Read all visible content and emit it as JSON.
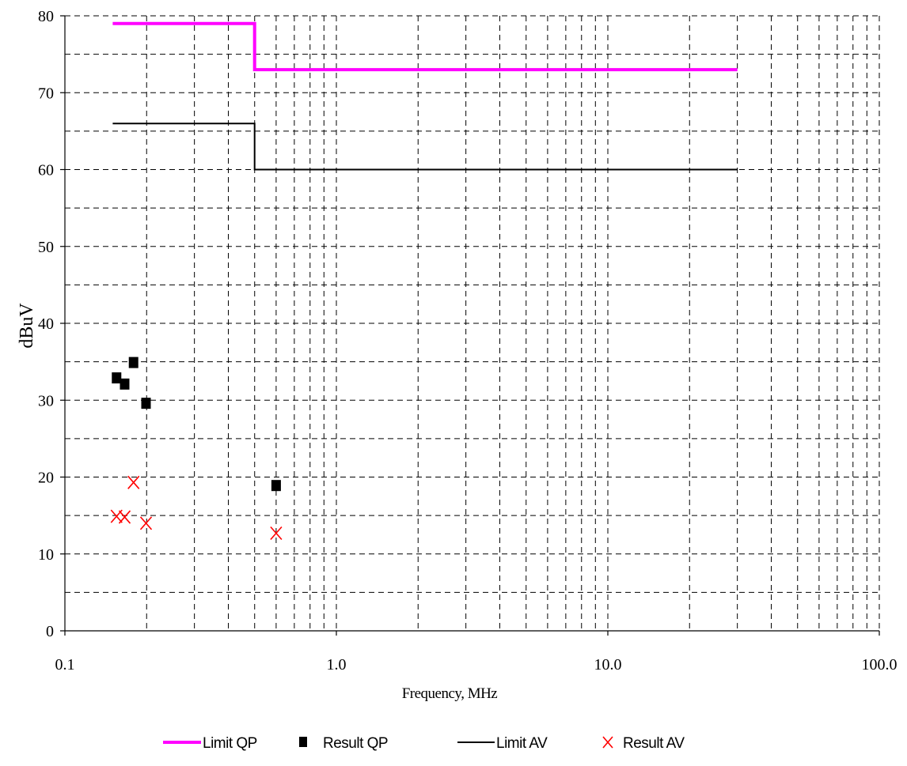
{
  "chart_data": {
    "type": "line",
    "xlabel": "Frequency, MHz",
    "ylabel": "dBuV",
    "x_scale": "log",
    "xlim": [
      0.1,
      100
    ],
    "ylim": [
      0,
      80
    ],
    "x_ticks": [
      {
        "value": 0.1,
        "label": "0.1"
      },
      {
        "value": 1,
        "label": "1.0"
      },
      {
        "value": 10,
        "label": "10.0"
      },
      {
        "value": 100,
        "label": "100.0"
      }
    ],
    "y_ticks": [
      {
        "value": 0,
        "label": "0"
      },
      {
        "value": 10,
        "label": "10"
      },
      {
        "value": 20,
        "label": "20"
      },
      {
        "value": 30,
        "label": "30"
      },
      {
        "value": 40,
        "label": "40"
      },
      {
        "value": 50,
        "label": "50"
      },
      {
        "value": 60,
        "label": "60"
      },
      {
        "value": 70,
        "label": "70"
      },
      {
        "value": 80,
        "label": "80"
      }
    ],
    "grid": true,
    "legend_position": "bottom",
    "series": [
      {
        "name": "Limit QP",
        "kind": "line",
        "color": "#ff00ff",
        "points": [
          [
            0.15,
            79
          ],
          [
            0.5,
            79
          ],
          [
            0.5,
            73
          ],
          [
            30,
            73
          ]
        ]
      },
      {
        "name": "Result QP",
        "kind": "square",
        "color": "#000000",
        "points": [
          [
            0.155,
            32.9
          ],
          [
            0.166,
            32.1
          ],
          [
            0.179,
            34.9
          ],
          [
            0.199,
            29.6
          ],
          [
            0.6,
            18.9
          ]
        ]
      },
      {
        "name": "Limit AV",
        "kind": "line",
        "color": "#000000",
        "points": [
          [
            0.15,
            66
          ],
          [
            0.5,
            66
          ],
          [
            0.5,
            60
          ],
          [
            30,
            60
          ]
        ]
      },
      {
        "name": "Result AV",
        "kind": "cross",
        "color": "#ff0000",
        "points": [
          [
            0.155,
            14.9
          ],
          [
            0.166,
            14.8
          ],
          [
            0.179,
            19.3
          ],
          [
            0.199,
            14.0
          ],
          [
            0.6,
            12.7
          ]
        ]
      }
    ]
  }
}
